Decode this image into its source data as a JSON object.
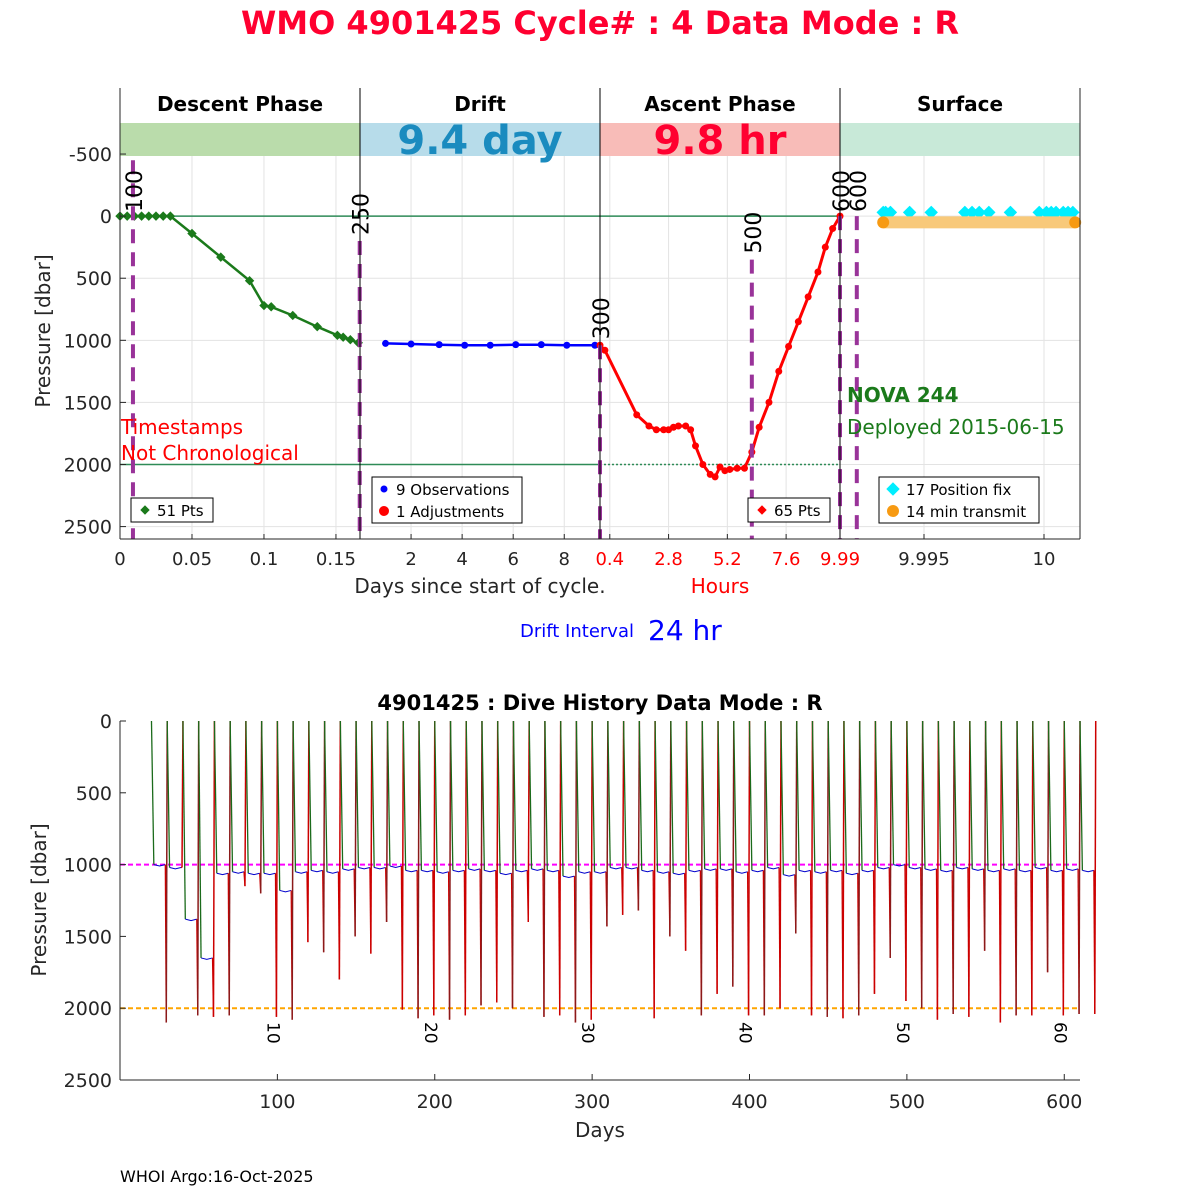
{
  "header": {
    "title": "WMO 4901425   Cycle# : 4   Data Mode : R",
    "color": "#ff0030"
  },
  "chart_data": [
    {
      "type": "line",
      "title": "Cycle profile",
      "ylabel": "Pressure [dbar]",
      "ylim": [
        2600,
        -750
      ],
      "yticks": [
        -500,
        0,
        500,
        1000,
        1500,
        2000,
        2500
      ],
      "xlabel": "Days since start of cycle.",
      "xlabel2": "Hours",
      "panels": [
        {
          "name": "Descent Phase",
          "band_color": "#badcab",
          "xlim": [
            0,
            0.1667
          ],
          "xticks": [
            0,
            0.05,
            0.1,
            0.15
          ],
          "xticklabels": [
            "0",
            "0.05",
            "0.1",
            "0.15"
          ],
          "series": [
            {
              "name": "descent",
              "color": "#1b7a1b",
              "x": [
                0,
                0.005,
                0.01,
                0.015,
                0.02,
                0.025,
                0.03,
                0.035,
                0.05,
                0.07,
                0.09,
                0.1,
                0.105,
                0.12,
                0.137,
                0.151,
                0.155,
                0.16,
                0.1655
              ],
              "y": [
                0,
                0,
                0,
                0,
                0,
                0,
                0,
                0,
                140,
                330,
                520,
                720,
                730,
                800,
                890,
                960,
                975,
                995,
                1020
              ]
            }
          ],
          "legend": [
            "51 Pts"
          ],
          "annotations": [
            "Timestamps",
            "Not Chronological"
          ],
          "markers": [
            {
              "label": "100",
              "x": 0.009,
              "from": -450,
              "to": 2600
            },
            {
              "label": "250",
              "x": 0.1665,
              "from": 200,
              "to": 2600
            }
          ]
        },
        {
          "name": "Drift",
          "band_color": "#b7dcea",
          "band_text": "9.4 day",
          "band_text_color": "#1a8bbf",
          "xlim": [
            0,
            9.4
          ],
          "xticks": [
            2,
            4,
            6,
            8
          ],
          "xticklabels": [
            "2",
            "4",
            "6",
            "8"
          ],
          "series": [
            {
              "name": "drift",
              "color": "#0000ff",
              "x": [
                1,
                2,
                3.1,
                4.1,
                5.1,
                6.1,
                7.1,
                8.1,
                9.2
              ],
              "y": [
                1025,
                1030,
                1035,
                1040,
                1040,
                1035,
                1035,
                1040,
                1040
              ]
            }
          ],
          "legend": [
            "9 Observations",
            "1 Adjustments"
          ]
        },
        {
          "name": "Ascent Phase",
          "band_color": "#f8bcb8",
          "band_text": "9.8 hr",
          "band_text_color": "#ff0030",
          "xlim": [
            0,
            9.8
          ],
          "xticks": [
            0.4,
            2.8,
            5.2,
            7.6,
            9.8
          ],
          "xticklabels": [
            "0.4",
            "2.8",
            "5.2",
            "7.6",
            "9.99"
          ],
          "series": [
            {
              "name": "ascent",
              "color": "#ff0000",
              "x": [
                0,
                0.2,
                1.5,
                2.0,
                2.3,
                2.6,
                2.8,
                3.0,
                3.2,
                3.5,
                3.7,
                3.9,
                4.2,
                4.5,
                4.7,
                4.9,
                5.1,
                5.3,
                5.6,
                5.9,
                6.2,
                6.5,
                6.9,
                7.3,
                7.7,
                8.1,
                8.5,
                8.9,
                9.2,
                9.5,
                9.8
              ],
              "y": [
                1040,
                1080,
                1600,
                1690,
                1720,
                1720,
                1720,
                1700,
                1690,
                1690,
                1720,
                1850,
                2000,
                2080,
                2100,
                2020,
                2050,
                2040,
                2030,
                2030,
                1900,
                1700,
                1500,
                1250,
                1050,
                850,
                650,
                450,
                250,
                100,
                0
              ]
            }
          ],
          "legend": [
            "65 Pts"
          ],
          "markers": [
            {
              "label": "300",
              "x": 0,
              "from": 1040,
              "to": 2600
            },
            {
              "label": "500",
              "x": 6.2,
              "from": 350,
              "to": 2600
            },
            {
              "label": "600",
              "x": 9.8,
              "from": 0,
              "to": 2600
            }
          ]
        },
        {
          "name": "Surface",
          "band_color": "#c8e9d8",
          "xlim": [
            9.9915,
            10.0015
          ],
          "xticks": [
            9.995,
            10
          ],
          "xticklabels": [
            "9.995",
            "10"
          ],
          "series": [
            {
              "name": "positions",
              "color": "#00eeff",
              "x": [
                9.9933,
                9.9934,
                9.9936,
                9.9944,
                9.9953,
                9.9967,
                9.997,
                9.9973,
                9.9977,
                9.9986,
                9.9998,
                10.0001,
                10.0003,
                10.0005,
                10.0008,
                10.001,
                10.0012
              ],
              "y": [
                -30,
                -30,
                -30,
                -30,
                -30,
                -30,
                -30,
                -30,
                -30,
                -30,
                -30,
                -30,
                -30,
                -30,
                -30,
                -30,
                -30
              ]
            },
            {
              "name": "transmit",
              "color": "#f79a12",
              "x": [
                9.9933,
                10.0013
              ],
              "y": [
                50,
                50
              ]
            }
          ],
          "legend": [
            "17 Position fix",
            "14 min transmit"
          ],
          "annotations": [
            "NOVA 244",
            "Deployed 2015-06-15"
          ],
          "markers": [
            {
              "label": "600",
              "x": 9.9922,
              "from": 0,
              "to": 2600
            }
          ]
        }
      ],
      "drift_interval_label": "Drift Interval",
      "drift_interval_value": "24 hr"
    },
    {
      "type": "line",
      "title": "4901425 : Dive History      Data Mode : R",
      "xlabel": "Days",
      "ylabel": "Pressure [dbar]",
      "xlim": [
        0,
        610
      ],
      "ylim": [
        2500,
        0
      ],
      "xticks": [
        100,
        200,
        300,
        400,
        500,
        600
      ],
      "yticks": [
        0,
        500,
        1000,
        1500,
        2000,
        2500
      ],
      "park_pressure": 1000,
      "profile_pressure": 2000,
      "cycle_labels": [
        "10",
        "20",
        "30",
        "40",
        "50",
        "60"
      ],
      "cycle_days": [
        20,
        30,
        40,
        50,
        60,
        70,
        80,
        90,
        100,
        110,
        120,
        130,
        140,
        150,
        160,
        170,
        180,
        190,
        200,
        210,
        220,
        230,
        240,
        250,
        260,
        270,
        280,
        290,
        300,
        310,
        320,
        330,
        340,
        350,
        360,
        370,
        380,
        390,
        400,
        410,
        420,
        430,
        440,
        450,
        460,
        470,
        480,
        490,
        500,
        510,
        520,
        530,
        540,
        550,
        560,
        570,
        580,
        590,
        600,
        610
      ],
      "descent_depths": [
        1000,
        1020,
        1380,
        1650,
        1060,
        1050,
        1060,
        1060,
        1180,
        1050,
        1040,
        1050,
        1030,
        1020,
        1020,
        1010,
        1040,
        1040,
        1050,
        1040,
        1030,
        1040,
        1060,
        1040,
        1030,
        1040,
        1080,
        1050,
        1050,
        1020,
        1020,
        1040,
        1050,
        1060,
        1040,
        1030,
        1030,
        1050,
        1040,
        1020,
        1070,
        1040,
        1050,
        1040,
        1060,
        1040,
        1020,
        1000,
        1020,
        1030,
        1040,
        1020,
        1030,
        1040,
        1030,
        1040,
        1020,
        1040,
        1030,
        1040
      ],
      "ascent_depths": [
        2100,
        1020,
        2050,
        2060,
        2050,
        1150,
        1200,
        2060,
        2080,
        1540,
        1610,
        1800,
        1500,
        1620,
        1400,
        2010,
        2070,
        2050,
        2080,
        2050,
        1980,
        1960,
        2000,
        1400,
        2060,
        2050,
        2100,
        2080,
        1430,
        1350,
        1320,
        2070,
        1500,
        1600,
        2050,
        1900,
        1850,
        2050,
        2050,
        2000,
        1480,
        2050,
        2060,
        2070,
        2050,
        1900,
        1650,
        1950,
        2000,
        2080,
        2040,
        2060,
        1600,
        2100,
        2050,
        2050,
        1750,
        2050,
        2040,
        2040
      ],
      "colors": {
        "descent": "#1b6b1b",
        "ascent": "#cc0000",
        "ascent2": "#8b1a1a",
        "drift": "#0000cc",
        "park": "#ff00ff",
        "deep": "#ffa500"
      }
    }
  ],
  "footer": {
    "text": "WHOI Argo:16-Oct-2025"
  }
}
